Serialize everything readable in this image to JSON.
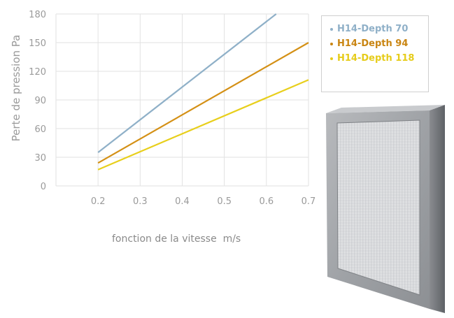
{
  "chart_data": {
    "type": "line",
    "ylabel": "Perte de pression Pa",
    "xlabel": "fonction de la vitesse  m/s",
    "x_ticks": [
      "0.2",
      "0.3",
      "0.4",
      "0.5",
      "0.6",
      "0.7"
    ],
    "y_ticks": [
      "0",
      "30",
      "60",
      "90",
      "120",
      "150",
      "180"
    ],
    "xlim": [
      0.1,
      0.7
    ],
    "ylim": [
      0,
      180
    ],
    "grid": true,
    "legend_position": "top-right",
    "series": [
      {
        "name": "H14-Depth 70",
        "color": "#8fb0c8",
        "x": [
          0.2,
          0.6232
        ],
        "y": [
          35,
          180
        ]
      },
      {
        "name": "H14-Depth 94",
        "color": "#d49015",
        "x": [
          0.2,
          0.7
        ],
        "y": [
          24,
          150
        ]
      },
      {
        "name": "H14-Depth 118",
        "color": "#e8cf1c",
        "x": [
          0.2,
          0.7
        ],
        "y": [
          17,
          111
        ]
      }
    ]
  },
  "legend": {
    "items": [
      {
        "label": "H14-Depth 70",
        "color": "#8fb0c8"
      },
      {
        "label": "H14-Depth 94",
        "color": "#c98512"
      },
      {
        "label": "H14-Depth 118",
        "color": "#e6cc1a"
      }
    ]
  },
  "image": {
    "name": "hepa-filter-panel"
  }
}
